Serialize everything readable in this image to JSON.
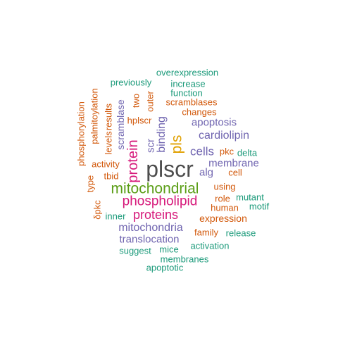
{
  "colors": {
    "gray": "#4d4d4d",
    "green": "#5b9e17",
    "pink": "#d6187a",
    "purple": "#7065b0",
    "orange": "#d2580a",
    "teal": "#1b9a7a",
    "gold": "#e0a000"
  },
  "words": [
    {
      "text": "plscr",
      "color": "gray"
    },
    {
      "text": "mitochondrial",
      "color": "green"
    },
    {
      "text": "phospholipid",
      "color": "pink"
    },
    {
      "text": "protein",
      "color": "pink"
    },
    {
      "text": "pls",
      "color": "gold"
    },
    {
      "text": "proteins",
      "color": "pink"
    },
    {
      "text": "mitochondria",
      "color": "purple"
    },
    {
      "text": "translocation",
      "color": "purple"
    },
    {
      "text": "binding",
      "color": "purple"
    },
    {
      "text": "cells",
      "color": "purple"
    },
    {
      "text": "cardiolipin",
      "color": "purple"
    },
    {
      "text": "apoptosis",
      "color": "purple"
    },
    {
      "text": "membrane",
      "color": "purple"
    },
    {
      "text": "scramblase",
      "color": "purple"
    },
    {
      "text": "scr",
      "color": "purple"
    },
    {
      "text": "alg",
      "color": "purple"
    },
    {
      "text": "expression",
      "color": "orange"
    },
    {
      "text": "changes",
      "color": "orange"
    },
    {
      "text": "scramblases",
      "color": "orange"
    },
    {
      "text": "activity",
      "color": "orange"
    },
    {
      "text": "levels",
      "color": "orange"
    },
    {
      "text": "results",
      "color": "orange"
    },
    {
      "text": "hplscr",
      "color": "orange"
    },
    {
      "text": "two",
      "color": "orange"
    },
    {
      "text": "outer",
      "color": "orange"
    },
    {
      "text": "using",
      "color": "orange"
    },
    {
      "text": "role",
      "color": "orange"
    },
    {
      "text": "human",
      "color": "orange"
    },
    {
      "text": "family",
      "color": "orange"
    },
    {
      "text": "tbid",
      "color": "orange"
    },
    {
      "text": "type",
      "color": "orange"
    },
    {
      "text": "δpkc",
      "color": "orange"
    },
    {
      "text": "pkc",
      "color": "orange"
    },
    {
      "text": "cell",
      "color": "orange"
    },
    {
      "text": "phosphorylation",
      "color": "orange"
    },
    {
      "text": "palmitoylation",
      "color": "orange"
    },
    {
      "text": "overexpression",
      "color": "teal"
    },
    {
      "text": "increase",
      "color": "teal"
    },
    {
      "text": "function",
      "color": "teal"
    },
    {
      "text": "previously",
      "color": "teal"
    },
    {
      "text": "delta",
      "color": "teal"
    },
    {
      "text": "mutant",
      "color": "teal"
    },
    {
      "text": "motif",
      "color": "teal"
    },
    {
      "text": "release",
      "color": "teal"
    },
    {
      "text": "activation",
      "color": "teal"
    },
    {
      "text": "mice",
      "color": "teal"
    },
    {
      "text": "suggest",
      "color": "teal"
    },
    {
      "text": "membranes",
      "color": "teal"
    },
    {
      "text": "apoptotic",
      "color": "teal"
    },
    {
      "text": "inner",
      "color": "teal"
    }
  ]
}
